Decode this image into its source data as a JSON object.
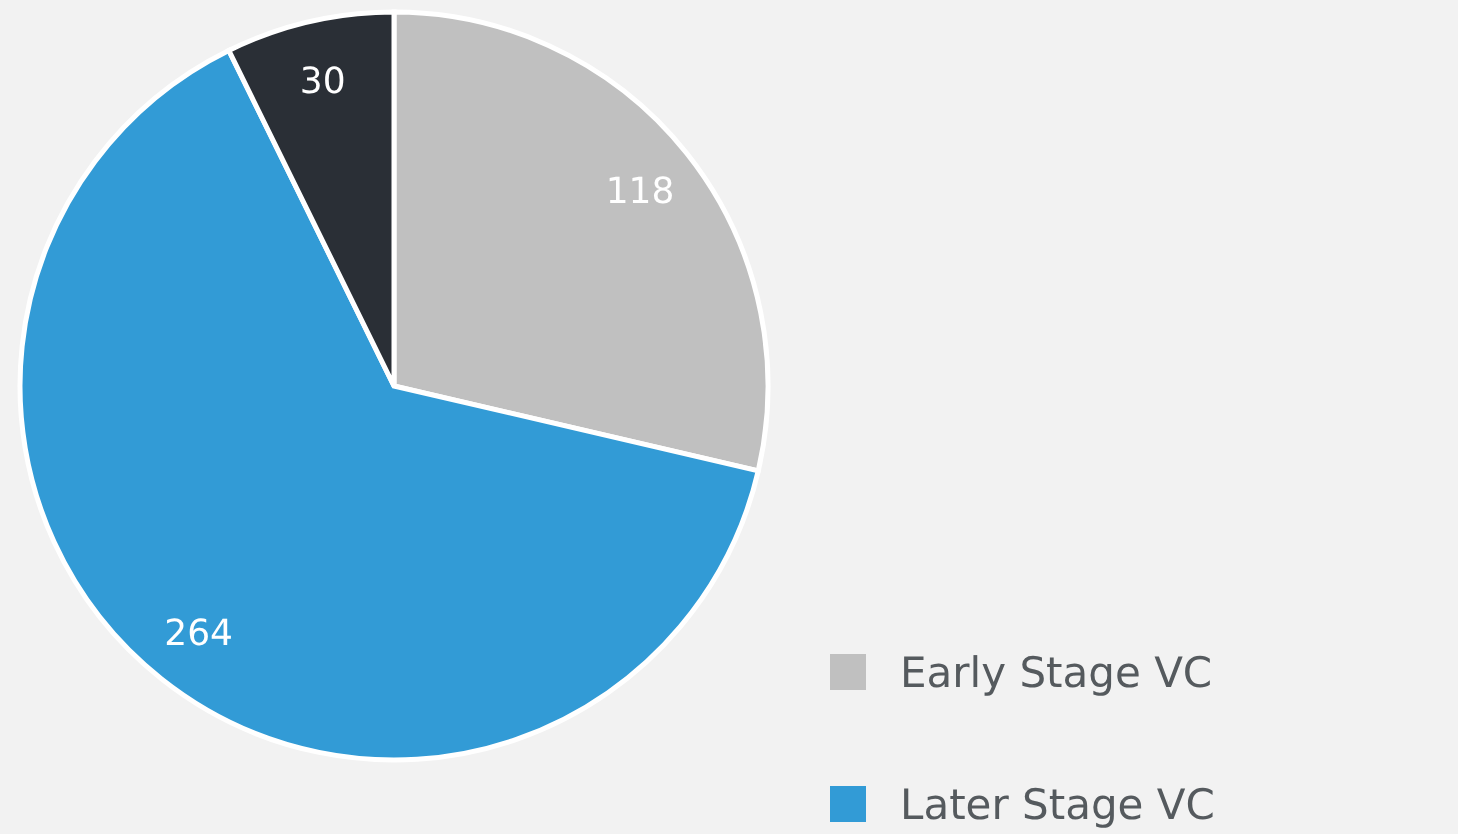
{
  "chart_data": {
    "type": "pie",
    "categories": [
      "Early Stage VC",
      "Later Stage VC",
      null
    ],
    "values": [
      118,
      264,
      30
    ],
    "colors": [
      "#c0c0c0",
      "#329bd6",
      "#2a2f36"
    ],
    "data_labels": true,
    "legend": "bottom right"
  }
}
